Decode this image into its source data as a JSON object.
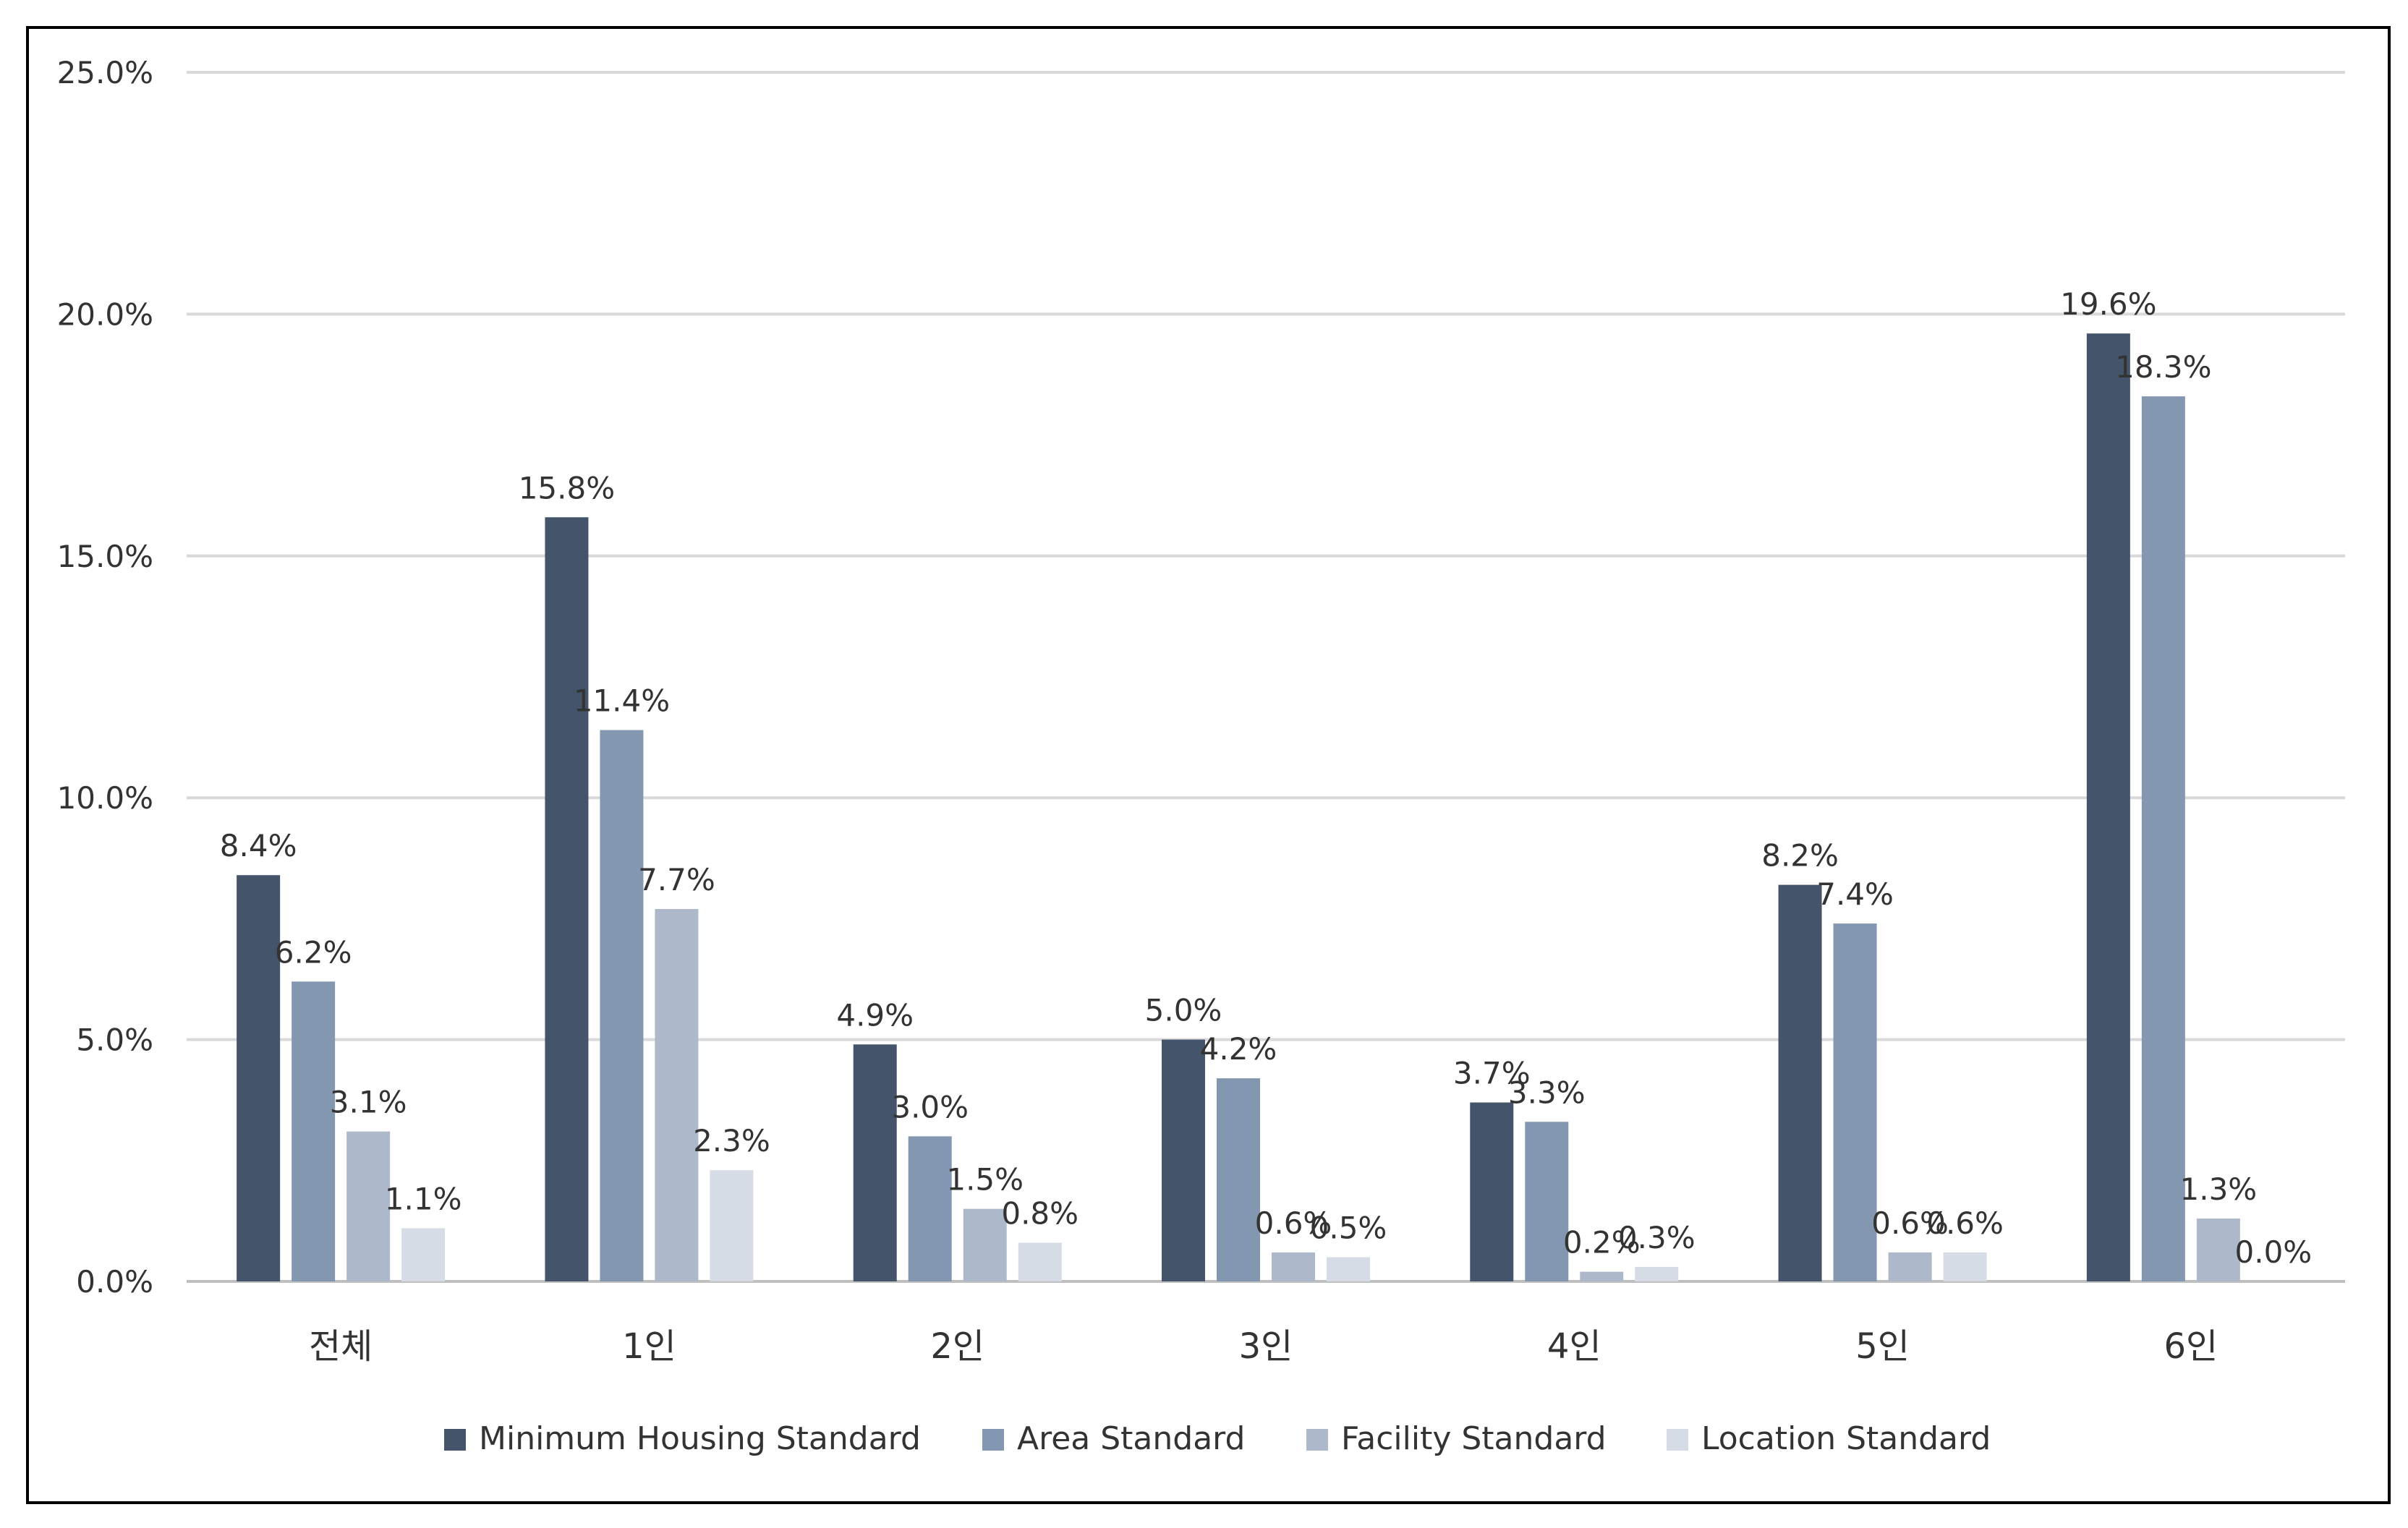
{
  "chart_data": {
    "type": "bar",
    "title": "",
    "xlabel": "",
    "ylabel": "",
    "ylim": [
      0,
      25
    ],
    "y_ticks": [
      "0.0%",
      "5.0%",
      "10.0%",
      "15.0%",
      "20.0%",
      "25.0%"
    ],
    "y_tick_values": [
      0,
      5,
      10,
      15,
      20,
      25
    ],
    "grid": true,
    "legend_position": "bottom",
    "categories": [
      "전체",
      "1인",
      "2인",
      "3인",
      "4인",
      "5인",
      "6인"
    ],
    "series": [
      {
        "name": "Minimum Housing Standard",
        "color": "#44546a",
        "values": [
          8.4,
          15.8,
          4.9,
          5.0,
          3.7,
          8.2,
          19.6
        ],
        "labels": [
          "8.4%",
          "15.8%",
          "4.9%",
          "5.0%",
          "3.7%",
          "8.2%",
          "19.6%"
        ]
      },
      {
        "name": "Area Standard",
        "color": "#8497b0",
        "values": [
          6.2,
          11.4,
          3.0,
          4.2,
          3.3,
          7.4,
          18.3
        ],
        "labels": [
          "6.2%",
          "11.4%",
          "3.0%",
          "4.2%",
          "3.3%",
          "7.4%",
          "18.3%"
        ]
      },
      {
        "name": "Facility Standard",
        "color": "#adb9ca",
        "values": [
          3.1,
          7.7,
          1.5,
          0.6,
          0.2,
          0.6,
          1.3
        ],
        "labels": [
          "3.1%",
          "7.7%",
          "1.5%",
          "0.6%",
          "0.2%",
          "0.6%",
          "1.3%"
        ]
      },
      {
        "name": "Location Standard",
        "color": "#d6dce5",
        "values": [
          1.1,
          2.3,
          0.8,
          0.5,
          0.3,
          0.6,
          0.0
        ],
        "labels": [
          "1.1%",
          "2.3%",
          "0.8%",
          "0.5%",
          "0.3%",
          "0.6%",
          "0.0%"
        ]
      }
    ]
  },
  "colors": {
    "grid": "#d9d9d9",
    "axis": "#bfbfbf",
    "border": "#000000",
    "text": "#333333"
  }
}
